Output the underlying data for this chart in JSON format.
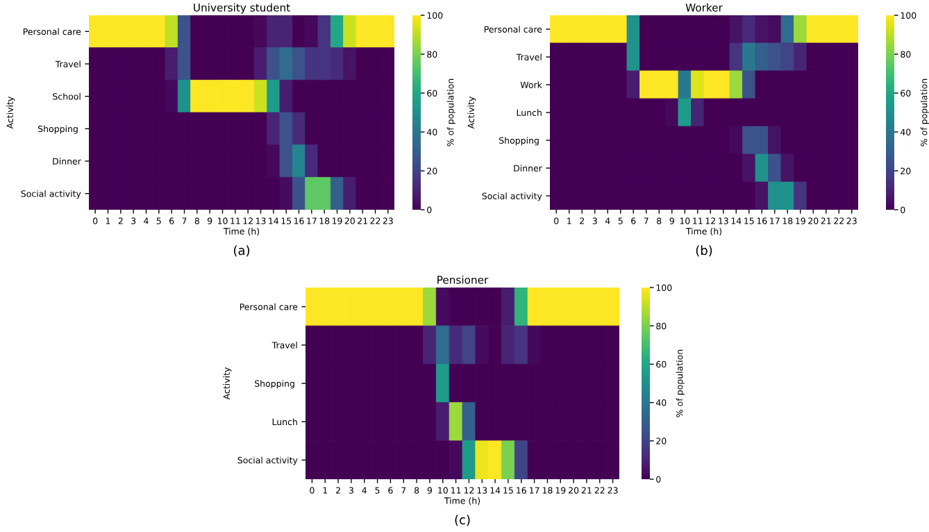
{
  "chart_data": [
    {
      "type": "heatmap",
      "title": "University student",
      "xlabel": "Time (h)",
      "ylabel": "Activity",
      "clabel": "% of population",
      "annotations": [
        "(a)"
      ],
      "categories": [
        "0",
        "1",
        "2",
        "3",
        "4",
        "5",
        "6",
        "7",
        "8",
        "9",
        "10",
        "11",
        "12",
        "13",
        "14",
        "15",
        "16",
        "17",
        "18",
        "19",
        "20",
        "21",
        "22",
        "23"
      ],
      "y_categories": [
        "Personal care",
        "Travel",
        "School",
        "Shopping ",
        "Dinner",
        "Social activity"
      ],
      "cells": [
        [
          100,
          100,
          100,
          100,
          100,
          100,
          90,
          25,
          0,
          0,
          0,
          0,
          0,
          2,
          10,
          10,
          0,
          2,
          15,
          60,
          92,
          100,
          100,
          100
        ],
        [
          0,
          0,
          0,
          0,
          0,
          0,
          8,
          25,
          0,
          0,
          0,
          0,
          0,
          8,
          25,
          35,
          25,
          15,
          15,
          12,
          5,
          0,
          0,
          0
        ],
        [
          0,
          0,
          0,
          0,
          0,
          0,
          2,
          50,
          100,
          100,
          100,
          100,
          100,
          92,
          55,
          8,
          0,
          0,
          0,
          0,
          0,
          0,
          0,
          0
        ],
        [
          0,
          0,
          0,
          0,
          0,
          0,
          0,
          0,
          0,
          0,
          0,
          0,
          0,
          0,
          10,
          25,
          12,
          0,
          0,
          0,
          0,
          0,
          0,
          0
        ],
        [
          0,
          0,
          0,
          0,
          0,
          0,
          0,
          0,
          0,
          0,
          0,
          0,
          0,
          0,
          2,
          25,
          45,
          12,
          0,
          0,
          0,
          0,
          0,
          0
        ],
        [
          0,
          0,
          0,
          0,
          0,
          0,
          0,
          0,
          0,
          0,
          0,
          0,
          0,
          0,
          0,
          3,
          25,
          75,
          75,
          30,
          8,
          0,
          0,
          0
        ]
      ],
      "clim": [
        0,
        100
      ],
      "cticks": [
        0,
        20,
        40,
        60,
        80,
        100
      ]
    },
    {
      "type": "heatmap",
      "title": "Worker",
      "xlabel": "Time (h)",
      "ylabel": "Activity",
      "clabel": "% of population",
      "annotations": [
        "(b)"
      ],
      "categories": [
        "0",
        "1",
        "2",
        "3",
        "4",
        "5",
        "6",
        "7",
        "8",
        "9",
        "10",
        "11",
        "12",
        "13",
        "14",
        "15",
        "16",
        "17",
        "18",
        "19",
        "20",
        "21",
        "22",
        "23"
      ],
      "y_categories": [
        "Personal care",
        "Travel",
        "Work",
        "Lunch",
        "Shopping ",
        "Dinner",
        "Social activity"
      ],
      "cells": [
        [
          100,
          100,
          100,
          100,
          100,
          100,
          50,
          0,
          0,
          0,
          0,
          0,
          0,
          0,
          5,
          12,
          5,
          3,
          35,
          85,
          100,
          100,
          100,
          100
        ],
        [
          0,
          0,
          0,
          0,
          0,
          0,
          50,
          0,
          0,
          0,
          0,
          0,
          0,
          0,
          15,
          40,
          30,
          25,
          20,
          10,
          0,
          0,
          0,
          0
        ],
        [
          0,
          0,
          0,
          0,
          0,
          0,
          8,
          100,
          100,
          100,
          40,
          95,
          100,
          100,
          85,
          25,
          0,
          0,
          0,
          0,
          0,
          0,
          0,
          0
        ],
        [
          0,
          0,
          0,
          0,
          0,
          0,
          0,
          0,
          0,
          2,
          55,
          10,
          0,
          0,
          0,
          0,
          0,
          0,
          0,
          0,
          0,
          0,
          0,
          0
        ],
        [
          0,
          0,
          0,
          0,
          0,
          0,
          0,
          0,
          0,
          0,
          0,
          0,
          0,
          0,
          2,
          25,
          25,
          5,
          0,
          0,
          0,
          0,
          0,
          0
        ],
        [
          0,
          0,
          0,
          0,
          0,
          0,
          0,
          0,
          0,
          0,
          0,
          0,
          0,
          0,
          0,
          5,
          50,
          25,
          5,
          0,
          0,
          0,
          0,
          0
        ],
        [
          0,
          0,
          0,
          0,
          0,
          0,
          0,
          0,
          0,
          0,
          0,
          0,
          0,
          0,
          0,
          0,
          5,
          50,
          50,
          15,
          0,
          0,
          0,
          0
        ]
      ],
      "clim": [
        0,
        100
      ],
      "cticks": [
        0,
        20,
        40,
        60,
        80,
        100
      ]
    },
    {
      "type": "heatmap",
      "title": "Pensioner",
      "xlabel": "Time (h)",
      "ylabel": "Activity",
      "clabel": "% of population",
      "annotations": [
        "(c)"
      ],
      "categories": [
        "0",
        "1",
        "2",
        "3",
        "4",
        "5",
        "6",
        "7",
        "8",
        "9",
        "10",
        "11",
        "12",
        "13",
        "14",
        "15",
        "16",
        "17",
        "18",
        "19",
        "20",
        "21",
        "22",
        "23"
      ],
      "y_categories": [
        "Personal care",
        "Travel",
        "Shopping ",
        "Lunch",
        "Social activity"
      ],
      "cells": [
        [
          100,
          100,
          100,
          100,
          100,
          100,
          100,
          100,
          100,
          85,
          3,
          0,
          0,
          0,
          0,
          8,
          65,
          100,
          100,
          100,
          100,
          100,
          100,
          100
        ],
        [
          0,
          0,
          0,
          0,
          0,
          0,
          0,
          0,
          0,
          10,
          35,
          12,
          20,
          3,
          0,
          10,
          15,
          2,
          0,
          0,
          0,
          0,
          0,
          0
        ],
        [
          0,
          0,
          0,
          0,
          0,
          0,
          0,
          0,
          0,
          0,
          55,
          0,
          0,
          0,
          0,
          0,
          0,
          0,
          0,
          0,
          0,
          0,
          0,
          0
        ],
        [
          0,
          0,
          0,
          0,
          0,
          0,
          0,
          0,
          0,
          0,
          8,
          85,
          30,
          0,
          0,
          0,
          0,
          0,
          0,
          0,
          0,
          0,
          0,
          0
        ],
        [
          0,
          0,
          0,
          0,
          0,
          0,
          0,
          0,
          0,
          0,
          0,
          2,
          55,
          97,
          100,
          80,
          20,
          0,
          0,
          0,
          0,
          0,
          0,
          0
        ]
      ],
      "clim": [
        0,
        100
      ],
      "cticks": [
        0,
        20,
        40,
        60,
        80,
        100
      ]
    }
  ]
}
